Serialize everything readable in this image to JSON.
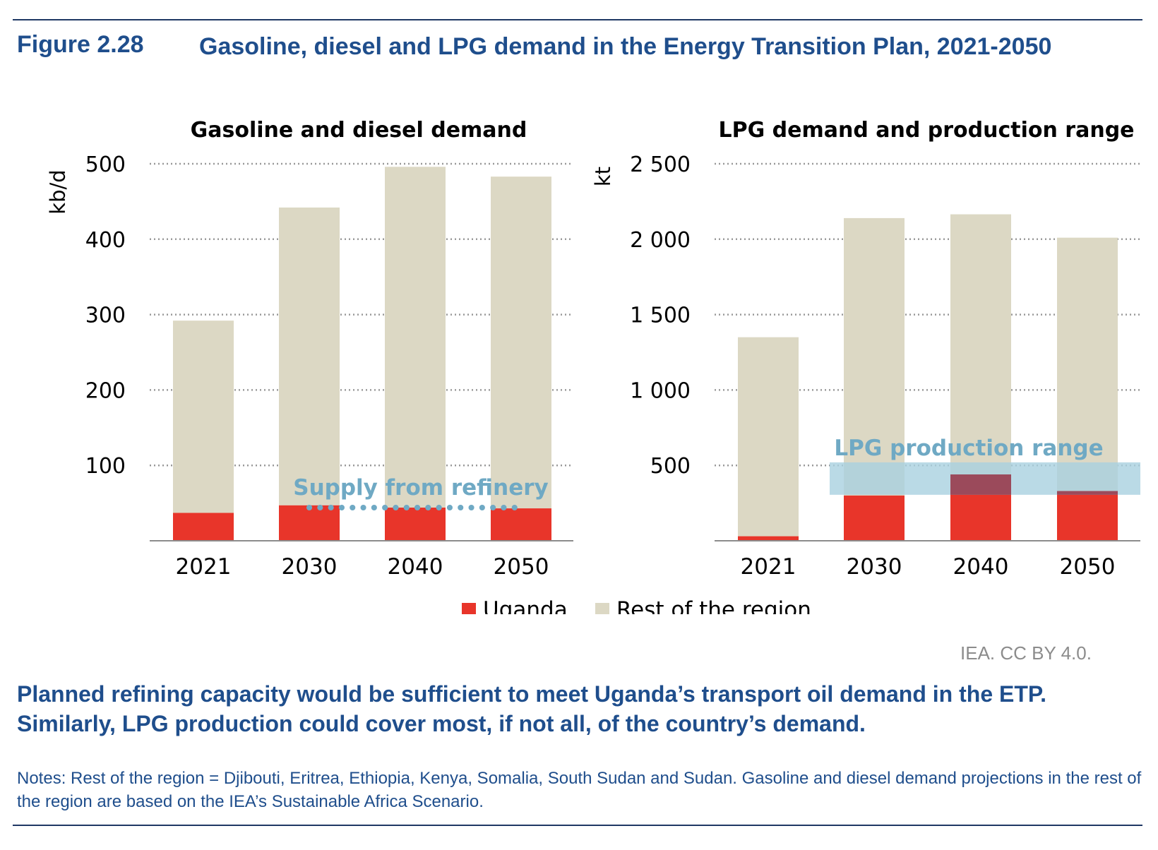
{
  "figure": {
    "number": "Figure 2.28",
    "title": "Gasoline, diesel and LPG demand in the Energy Transition Plan, 2021-2050"
  },
  "colors": {
    "uganda": "#e8352a",
    "rest": "#dcd8c4",
    "annotation": "#6fa9c4",
    "overlap": "#9b4a5b",
    "band": "#a9d1e0"
  },
  "legend": {
    "position": "bottom-center",
    "items": [
      "Uganda",
      "Rest of the region"
    ]
  },
  "chart_data": [
    {
      "type": "bar",
      "stacked": true,
      "title": "Gasoline and diesel demand",
      "ylabel": "kb/d",
      "xlabel": "",
      "ylim": [
        0,
        500
      ],
      "yticks": [
        100,
        200,
        300,
        400,
        500
      ],
      "ytick_labels": [
        "100",
        "200",
        "300",
        "400",
        "500"
      ],
      "grid": true,
      "categories": [
        "2021",
        "2030",
        "2040",
        "2050"
      ],
      "series": [
        {
          "name": "Uganda",
          "values": [
            37,
            47,
            44,
            43
          ]
        },
        {
          "name": "Rest of the region",
          "values": [
            255,
            395,
            452,
            440
          ]
        }
      ],
      "annotations": [
        {
          "text": "Supply from refinery",
          "style": "dotted-line",
          "y": 44
        }
      ]
    },
    {
      "type": "bar",
      "stacked": true,
      "title": "LPG demand and production range",
      "ylabel": "kt",
      "xlabel": "",
      "ylim": [
        0,
        2500
      ],
      "yticks": [
        500,
        1000,
        1500,
        2000,
        2500
      ],
      "ytick_labels": [
        "500",
        "1 000",
        "1 500",
        "2 000",
        "2 500"
      ],
      "grid": true,
      "categories": [
        "2021",
        "2030",
        "2040",
        "2050"
      ],
      "series": [
        {
          "name": "Uganda",
          "values": [
            30,
            300,
            440,
            330
          ]
        },
        {
          "name": "Rest of the region",
          "values": [
            1320,
            1840,
            1725,
            1680
          ]
        }
      ],
      "annotations": [
        {
          "text": "LPG production range",
          "style": "shaded-band",
          "y_range": [
            305,
            520
          ]
        }
      ]
    }
  ],
  "credit": "IEA. CC BY 4.0.",
  "takeaway": "Planned refining capacity would be sufficient to meet Uganda’s transport oil demand in the ETP. Similarly, LPG production could cover most, if not all, of the country’s demand.",
  "notes": "Notes: Rest of the region = Djibouti, Eritrea, Ethiopia, Kenya, Somalia, South Sudan and Sudan. Gasoline and diesel demand projections in the rest of the region are based on the IEA’s Sustainable Africa Scenario."
}
